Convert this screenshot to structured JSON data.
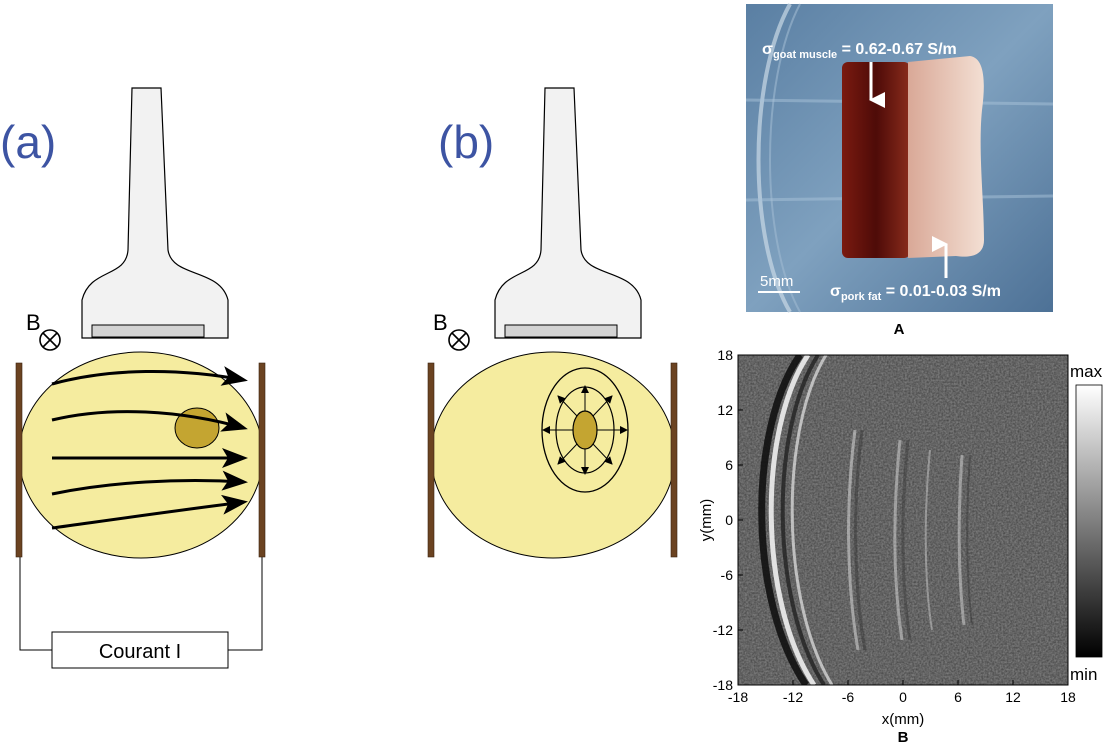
{
  "diagram": {
    "panel_a": {
      "label": "(a)",
      "field_symbol": "B",
      "current_box": "Courant I"
    },
    "panel_b": {
      "label": "(b)",
      "field_symbol": "B"
    }
  },
  "photo_A": {
    "label": "A",
    "muscle_sigma": "σ",
    "muscle_sub": "goat muscle",
    "muscle_value": " = 0.62-0.67 S/m",
    "fat_sigma": "σ",
    "fat_sub": "pork fat",
    "fat_value": " = 0.01-0.03 S/m",
    "scale_bar": "5mm"
  },
  "image_B": {
    "label": "B",
    "xlabel": "x(mm)",
    "ylabel": "y(mm)",
    "xticks": [
      "-18",
      "-12",
      "-6",
      "0",
      "6",
      "12",
      "18"
    ],
    "yticks": [
      "18",
      "12",
      "6",
      "0",
      "-6",
      "-12",
      "-18"
    ],
    "colorbar_max": "max",
    "colorbar_min": "min",
    "colors": {
      "tissue": "#f5ec9f",
      "inclusion": "#c4a531",
      "electrode": "#6b4321",
      "probe": "#f2f2f2",
      "label_blue": "#3d54a3"
    }
  }
}
